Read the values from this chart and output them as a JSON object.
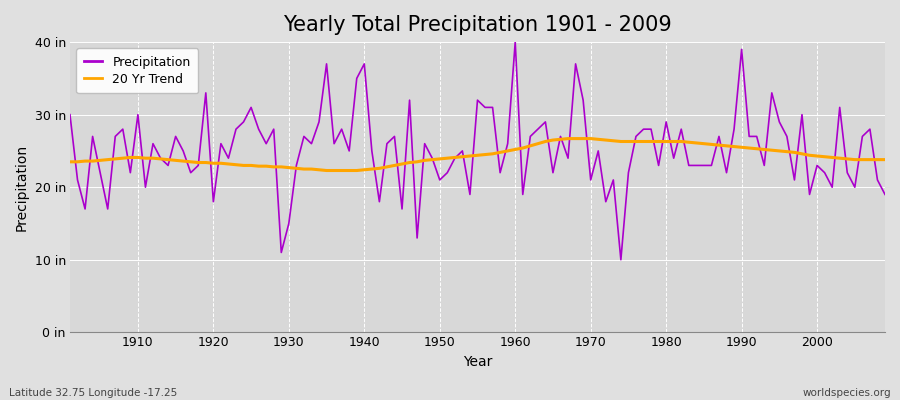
{
  "title": "Yearly Total Precipitation 1901 - 2009",
  "xlabel": "Year",
  "ylabel": "Precipitation",
  "xlim": [
    1901,
    2009
  ],
  "ylim": [
    0,
    40
  ],
  "yticks": [
    0,
    10,
    20,
    30,
    40
  ],
  "ytick_labels": [
    "0 in",
    "10 in",
    "20 in",
    "30 in",
    "40 in"
  ],
  "xticks": [
    1910,
    1920,
    1930,
    1940,
    1950,
    1960,
    1970,
    1980,
    1990,
    2000
  ],
  "precip_color": "#AA00CC",
  "trend_color": "#FFA500",
  "bg_color": "#E0E0E0",
  "plot_bg_color": "#D8D8D8",
  "grid_color": "#FFFFFF",
  "title_fontsize": 15,
  "axis_fontsize": 9,
  "legend_fontsize": 9,
  "footer_left": "Latitude 32.75 Longitude -17.25",
  "footer_right": "worldspecies.org",
  "years": [
    1901,
    1902,
    1903,
    1904,
    1905,
    1906,
    1907,
    1908,
    1909,
    1910,
    1911,
    1912,
    1913,
    1914,
    1915,
    1916,
    1917,
    1918,
    1919,
    1920,
    1921,
    1922,
    1923,
    1924,
    1925,
    1926,
    1927,
    1928,
    1929,
    1930,
    1931,
    1932,
    1933,
    1934,
    1935,
    1936,
    1937,
    1938,
    1939,
    1940,
    1941,
    1942,
    1943,
    1944,
    1945,
    1946,
    1947,
    1948,
    1949,
    1950,
    1951,
    1952,
    1953,
    1954,
    1955,
    1956,
    1957,
    1958,
    1959,
    1960,
    1961,
    1962,
    1963,
    1964,
    1965,
    1966,
    1967,
    1968,
    1969,
    1970,
    1971,
    1972,
    1973,
    1974,
    1975,
    1976,
    1977,
    1978,
    1979,
    1980,
    1981,
    1982,
    1983,
    1984,
    1985,
    1986,
    1987,
    1988,
    1989,
    1990,
    1991,
    1992,
    1993,
    1994,
    1995,
    1996,
    1997,
    1998,
    1999,
    2000,
    2001,
    2002,
    2003,
    2004,
    2005,
    2006,
    2007,
    2008,
    2009
  ],
  "precipitation": [
    30,
    21,
    17,
    27,
    22,
    17,
    27,
    28,
    22,
    30,
    20,
    26,
    24,
    23,
    27,
    25,
    22,
    23,
    33,
    18,
    26,
    24,
    28,
    29,
    31,
    28,
    26,
    28,
    11,
    15,
    23,
    27,
    26,
    29,
    37,
    26,
    28,
    25,
    35,
    37,
    25,
    18,
    26,
    27,
    17,
    32,
    13,
    26,
    24,
    21,
    22,
    24,
    25,
    19,
    32,
    31,
    31,
    22,
    26,
    40,
    19,
    27,
    28,
    29,
    22,
    27,
    24,
    37,
    32,
    21,
    25,
    18,
    21,
    10,
    22,
    27,
    28,
    28,
    23,
    29,
    24,
    28,
    23,
    23,
    23,
    23,
    27,
    22,
    28,
    39,
    27,
    27,
    23,
    33,
    29,
    27,
    21,
    30,
    19,
    23,
    22,
    20,
    31,
    22,
    20,
    27,
    28,
    21,
    19
  ],
  "trend": [
    23.5,
    23.5,
    23.6,
    23.6,
    23.7,
    23.8,
    23.9,
    24.0,
    24.1,
    24.1,
    24.0,
    24.0,
    23.9,
    23.8,
    23.7,
    23.6,
    23.5,
    23.4,
    23.4,
    23.3,
    23.3,
    23.2,
    23.1,
    23.0,
    23.0,
    22.9,
    22.9,
    22.8,
    22.8,
    22.7,
    22.6,
    22.5,
    22.5,
    22.4,
    22.3,
    22.3,
    22.3,
    22.3,
    22.3,
    22.4,
    22.5,
    22.6,
    22.8,
    23.0,
    23.2,
    23.4,
    23.5,
    23.7,
    23.8,
    23.9,
    24.0,
    24.1,
    24.2,
    24.3,
    24.4,
    24.5,
    24.6,
    24.8,
    25.0,
    25.2,
    25.4,
    25.7,
    26.0,
    26.3,
    26.5,
    26.6,
    26.7,
    26.7,
    26.7,
    26.7,
    26.6,
    26.5,
    26.4,
    26.3,
    26.3,
    26.3,
    26.3,
    26.3,
    26.3,
    26.3,
    26.3,
    26.3,
    26.2,
    26.1,
    26.0,
    25.9,
    25.8,
    25.7,
    25.6,
    25.5,
    25.4,
    25.3,
    25.2,
    25.1,
    25.0,
    24.9,
    24.8,
    24.6,
    24.4,
    24.3,
    24.2,
    24.1,
    24.0,
    23.9,
    23.8,
    23.8,
    23.8,
    23.8,
    23.8
  ]
}
